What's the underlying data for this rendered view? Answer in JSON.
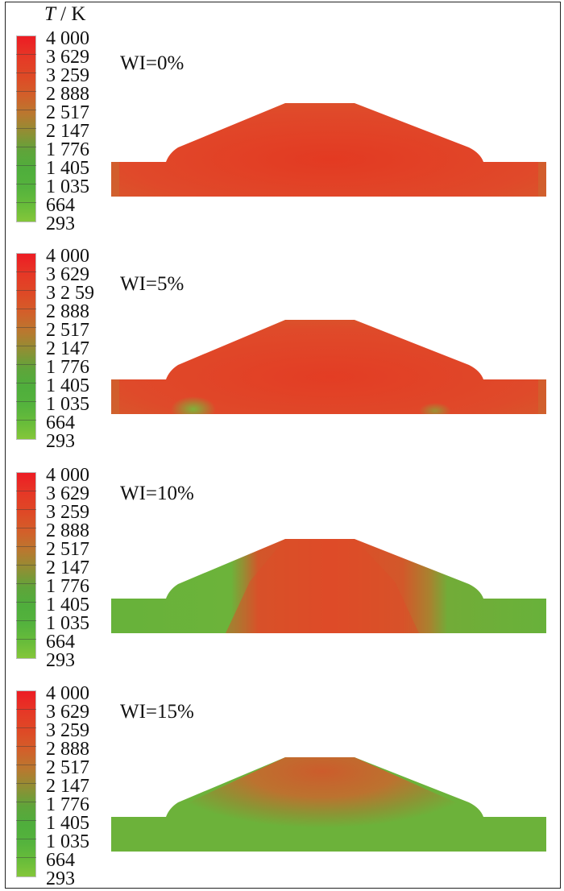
{
  "legend": {
    "title_symbol": "T",
    "title_unit": " / K",
    "colorbar_colors": [
      "#ed1c24",
      "#de4a26",
      "#b9782f",
      "#5fa43a",
      "#84c63a"
    ]
  },
  "panels": [
    {
      "label": "WI=0%",
      "ticks": [
        "4 000",
        "3 629",
        "3 259",
        "2 888",
        "2 517",
        "2 147",
        "1 776",
        "1 405",
        "1 035",
        "664",
        "293"
      ]
    },
    {
      "label": "WI=5%",
      "ticks": [
        "4 000",
        "3 629",
        "3 2 59",
        "2 888",
        "2 517",
        "2 147",
        "1 776",
        "1 405",
        "1 035",
        "664",
        "293"
      ]
    },
    {
      "label": "WI=10%",
      "ticks": [
        "4 000",
        "3 629",
        "3 259",
        "2 888",
        "2 517",
        "2 147",
        "1 776",
        "1 405",
        "1 035",
        "664",
        "293"
      ]
    },
    {
      "label": "WI=15%",
      "ticks": [
        "4 000",
        "3 629",
        "3 259",
        "2 888",
        "2 517",
        "2 147",
        "1 776",
        "1 405",
        "1 035",
        "664",
        "293"
      ]
    }
  ]
}
